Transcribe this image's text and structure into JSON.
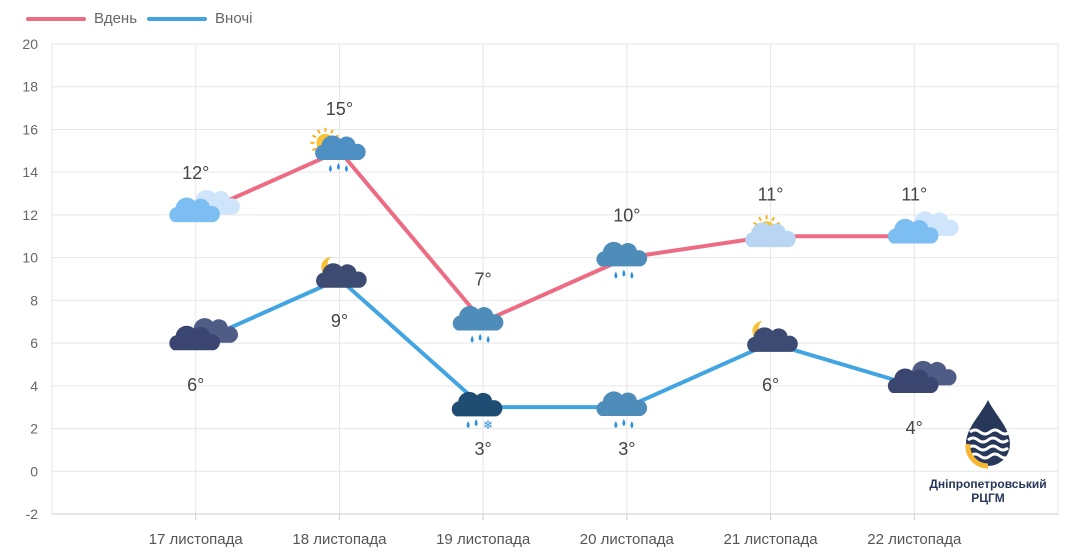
{
  "chart_data": {
    "type": "line",
    "categories": [
      "17 листопада",
      "18 листопада",
      "19 листопада",
      "20 листопада",
      "21 листопада",
      "22 листопада"
    ],
    "series": [
      {
        "name": "Вдень",
        "color": "#ec6d83",
        "values": [
          12,
          15,
          7,
          10,
          11,
          11
        ],
        "labels": [
          "12°",
          "15°",
          "7°",
          "10°",
          "11°",
          "11°"
        ],
        "label_position": "above",
        "icons": [
          "partly-cloudy-icon",
          "sun-cloud-rain-icon",
          "rain-cloud-icon",
          "rain-cloud-icon",
          "sun-cloud-icon",
          "partly-cloudy-icon"
        ]
      },
      {
        "name": "Вночі",
        "color": "#42a5e2",
        "values": [
          6,
          9,
          3,
          3,
          6,
          4
        ],
        "labels": [
          "6°",
          "9°",
          "3°",
          "3°",
          "6°",
          "4°"
        ],
        "label_position": "below",
        "icons": [
          "night-cloudy-icon",
          "moon-cloud-icon",
          "rain-snow-cloud-icon",
          "rain-cloud-icon",
          "moon-cloud-icon",
          "night-cloudy-icon"
        ]
      }
    ],
    "yticks": [
      -2,
      0,
      2,
      4,
      6,
      8,
      10,
      12,
      14,
      16,
      18,
      20
    ],
    "ylim": [
      -2,
      20
    ],
    "grid": true,
    "legend": "top-left"
  },
  "logo": {
    "line1": "Дніпропетровський",
    "line2": "РЦГМ"
  }
}
